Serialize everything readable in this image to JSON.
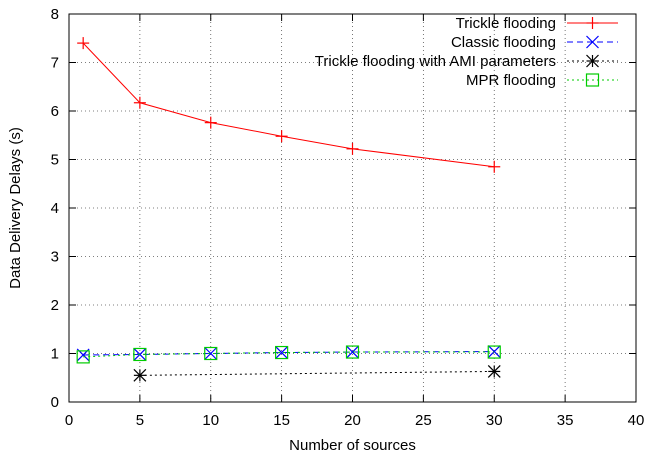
{
  "chart_data": {
    "type": "line",
    "xlabel": "Number of sources",
    "ylabel": "Data Delivery Delays (s)",
    "xlim": [
      0,
      40
    ],
    "ylim": [
      0,
      8
    ],
    "xticks": [
      0,
      5,
      10,
      15,
      20,
      25,
      30,
      35,
      40
    ],
    "yticks": [
      0,
      1,
      2,
      3,
      4,
      5,
      6,
      7,
      8
    ],
    "grid": true,
    "legend_position": "top-right",
    "series": [
      {
        "name": "Trickle flooding",
        "color": "#ff0000",
        "dash": "solid",
        "marker": "plus",
        "x": [
          1,
          5,
          10,
          15,
          20,
          30
        ],
        "y": [
          7.4,
          6.17,
          5.76,
          5.48,
          5.22,
          4.85
        ]
      },
      {
        "name": "Classic flooding",
        "color": "#0000ff",
        "dash": "dashed",
        "marker": "cross",
        "x": [
          1,
          5,
          10,
          15,
          20,
          30
        ],
        "y": [
          0.97,
          0.98,
          1.0,
          1.02,
          1.03,
          1.04
        ]
      },
      {
        "name": "Trickle flooding with AMI parameters",
        "color": "#000000",
        "dash": "dotted",
        "marker": "star",
        "x": [
          5,
          30
        ],
        "y": [
          0.55,
          0.63
        ]
      },
      {
        "name": "MPR flooding",
        "color": "#00cc00",
        "dash": "dotted",
        "marker": "square",
        "x": [
          1,
          5,
          10,
          15,
          20,
          30
        ],
        "y": [
          0.93,
          0.98,
          1.0,
          1.02,
          1.03,
          1.03
        ]
      }
    ]
  }
}
